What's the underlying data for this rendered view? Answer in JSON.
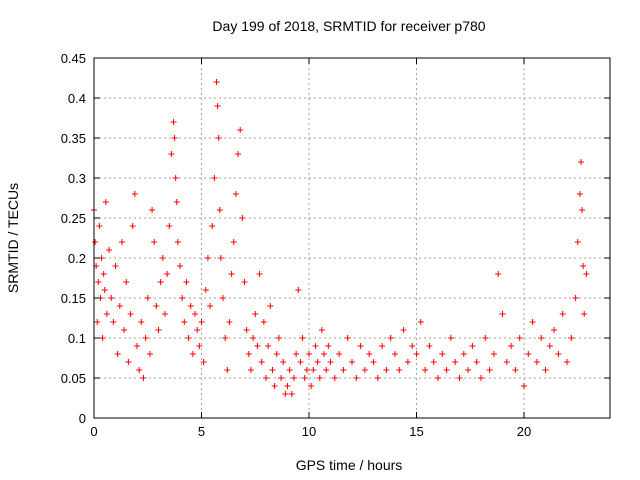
{
  "chart_data": {
    "type": "scatter",
    "title": "Day 199 of 2018, SRMTID for receiver p780",
    "xlabel": "GPS time / hours",
    "ylabel": "SRMTID / TECUs",
    "xlim": [
      0,
      24
    ],
    "ylim": [
      0,
      0.45
    ],
    "xticks": [
      0,
      5,
      10,
      15,
      20
    ],
    "xtick_labels": [
      "0",
      "5",
      "10",
      "15",
      "20"
    ],
    "yticks": [
      0,
      0.05,
      0.1,
      0.15,
      0.2,
      0.25,
      0.3,
      0.35,
      0.4,
      0.45
    ],
    "ytick_labels": [
      "0",
      "0.05",
      "0.1",
      "0.15",
      "0.2",
      "0.25",
      "0.3",
      "0.35",
      "0.4",
      "0.45"
    ],
    "grid": true,
    "marker": "+",
    "color": "#ff0000",
    "series": [
      {
        "name": "SRMTID",
        "points": [
          [
            0.0,
            0.26
          ],
          [
            0.05,
            0.22
          ],
          [
            0.1,
            0.19
          ],
          [
            0.15,
            0.12
          ],
          [
            0.2,
            0.17
          ],
          [
            0.25,
            0.24
          ],
          [
            0.3,
            0.15
          ],
          [
            0.35,
            0.2
          ],
          [
            0.4,
            0.1
          ],
          [
            0.45,
            0.18
          ],
          [
            0.5,
            0.16
          ],
          [
            0.55,
            0.27
          ],
          [
            0.6,
            0.13
          ],
          [
            0.7,
            0.21
          ],
          [
            0.8,
            0.15
          ],
          [
            0.9,
            0.12
          ],
          [
            1.0,
            0.19
          ],
          [
            1.1,
            0.08
          ],
          [
            1.2,
            0.14
          ],
          [
            1.3,
            0.22
          ],
          [
            1.4,
            0.11
          ],
          [
            1.5,
            0.17
          ],
          [
            1.6,
            0.07
          ],
          [
            1.7,
            0.13
          ],
          [
            1.8,
            0.24
          ],
          [
            1.9,
            0.28
          ],
          [
            2.0,
            0.09
          ],
          [
            2.1,
            0.06
          ],
          [
            2.2,
            0.12
          ],
          [
            2.3,
            0.05
          ],
          [
            2.4,
            0.1
          ],
          [
            2.5,
            0.15
          ],
          [
            2.6,
            0.08
          ],
          [
            2.7,
            0.26
          ],
          [
            2.8,
            0.22
          ],
          [
            2.9,
            0.14
          ],
          [
            3.0,
            0.11
          ],
          [
            3.1,
            0.17
          ],
          [
            3.2,
            0.2
          ],
          [
            3.3,
            0.13
          ],
          [
            3.4,
            0.18
          ],
          [
            3.5,
            0.24
          ],
          [
            3.6,
            0.33
          ],
          [
            3.7,
            0.37
          ],
          [
            3.75,
            0.35
          ],
          [
            3.8,
            0.3
          ],
          [
            3.85,
            0.27
          ],
          [
            3.9,
            0.22
          ],
          [
            4.0,
            0.19
          ],
          [
            4.1,
            0.15
          ],
          [
            4.2,
            0.12
          ],
          [
            4.3,
            0.17
          ],
          [
            4.4,
            0.1
          ],
          [
            4.5,
            0.14
          ],
          [
            4.6,
            0.08
          ],
          [
            4.7,
            0.13
          ],
          [
            4.8,
            0.11
          ],
          [
            4.9,
            0.09
          ],
          [
            5.0,
            0.12
          ],
          [
            5.1,
            0.07
          ],
          [
            5.2,
            0.16
          ],
          [
            5.3,
            0.2
          ],
          [
            5.4,
            0.14
          ],
          [
            5.5,
            0.24
          ],
          [
            5.6,
            0.3
          ],
          [
            5.7,
            0.42
          ],
          [
            5.75,
            0.39
          ],
          [
            5.8,
            0.35
          ],
          [
            5.85,
            0.26
          ],
          [
            5.9,
            0.2
          ],
          [
            6.0,
            0.15
          ],
          [
            6.1,
            0.1
          ],
          [
            6.2,
            0.06
          ],
          [
            6.3,
            0.12
          ],
          [
            6.4,
            0.18
          ],
          [
            6.5,
            0.22
          ],
          [
            6.6,
            0.28
          ],
          [
            6.7,
            0.33
          ],
          [
            6.8,
            0.36
          ],
          [
            6.9,
            0.25
          ],
          [
            7.0,
            0.17
          ],
          [
            7.1,
            0.11
          ],
          [
            7.2,
            0.08
          ],
          [
            7.3,
            0.06
          ],
          [
            7.4,
            0.1
          ],
          [
            7.5,
            0.13
          ],
          [
            7.6,
            0.09
          ],
          [
            7.7,
            0.18
          ],
          [
            7.8,
            0.07
          ],
          [
            7.9,
            0.12
          ],
          [
            8.0,
            0.05
          ],
          [
            8.1,
            0.09
          ],
          [
            8.2,
            0.14
          ],
          [
            8.3,
            0.06
          ],
          [
            8.4,
            0.04
          ],
          [
            8.5,
            0.08
          ],
          [
            8.6,
            0.1
          ],
          [
            8.7,
            0.05
          ],
          [
            8.8,
            0.07
          ],
          [
            8.9,
            0.03
          ],
          [
            9.0,
            0.04
          ],
          [
            9.1,
            0.06
          ],
          [
            9.2,
            0.03
          ],
          [
            9.3,
            0.05
          ],
          [
            9.4,
            0.08
          ],
          [
            9.5,
            0.16
          ],
          [
            9.6,
            0.07
          ],
          [
            9.7,
            0.1
          ],
          [
            9.8,
            0.05
          ],
          [
            9.9,
            0.06
          ],
          [
            10.0,
            0.08
          ],
          [
            10.1,
            0.04
          ],
          [
            10.2,
            0.06
          ],
          [
            10.3,
            0.09
          ],
          [
            10.4,
            0.07
          ],
          [
            10.5,
            0.05
          ],
          [
            10.6,
            0.11
          ],
          [
            10.7,
            0.08
          ],
          [
            10.8,
            0.06
          ],
          [
            10.9,
            0.09
          ],
          [
            11.0,
            0.07
          ],
          [
            11.2,
            0.05
          ],
          [
            11.4,
            0.08
          ],
          [
            11.6,
            0.06
          ],
          [
            11.8,
            0.1
          ],
          [
            12.0,
            0.07
          ],
          [
            12.2,
            0.05
          ],
          [
            12.4,
            0.09
          ],
          [
            12.6,
            0.06
          ],
          [
            12.8,
            0.08
          ],
          [
            13.0,
            0.07
          ],
          [
            13.2,
            0.05
          ],
          [
            13.4,
            0.09
          ],
          [
            13.6,
            0.06
          ],
          [
            13.8,
            0.1
          ],
          [
            14.0,
            0.08
          ],
          [
            14.2,
            0.06
          ],
          [
            14.4,
            0.11
          ],
          [
            14.6,
            0.07
          ],
          [
            14.8,
            0.09
          ],
          [
            15.0,
            0.08
          ],
          [
            15.2,
            0.12
          ],
          [
            15.4,
            0.06
          ],
          [
            15.6,
            0.09
          ],
          [
            15.8,
            0.07
          ],
          [
            16.0,
            0.05
          ],
          [
            16.2,
            0.08
          ],
          [
            16.4,
            0.06
          ],
          [
            16.6,
            0.1
          ],
          [
            16.8,
            0.07
          ],
          [
            17.0,
            0.05
          ],
          [
            17.2,
            0.08
          ],
          [
            17.4,
            0.06
          ],
          [
            17.6,
            0.09
          ],
          [
            17.8,
            0.07
          ],
          [
            18.0,
            0.05
          ],
          [
            18.2,
            0.1
          ],
          [
            18.4,
            0.06
          ],
          [
            18.6,
            0.08
          ],
          [
            18.8,
            0.18
          ],
          [
            19.0,
            0.13
          ],
          [
            19.2,
            0.07
          ],
          [
            19.4,
            0.09
          ],
          [
            19.6,
            0.06
          ],
          [
            19.8,
            0.1
          ],
          [
            20.0,
            0.04
          ],
          [
            20.2,
            0.08
          ],
          [
            20.4,
            0.12
          ],
          [
            20.6,
            0.07
          ],
          [
            20.8,
            0.1
          ],
          [
            21.0,
            0.06
          ],
          [
            21.2,
            0.09
          ],
          [
            21.4,
            0.11
          ],
          [
            21.6,
            0.08
          ],
          [
            21.8,
            0.13
          ],
          [
            22.0,
            0.07
          ],
          [
            22.2,
            0.1
          ],
          [
            22.4,
            0.15
          ],
          [
            22.5,
            0.22
          ],
          [
            22.6,
            0.28
          ],
          [
            22.65,
            0.32
          ],
          [
            22.7,
            0.26
          ],
          [
            22.75,
            0.19
          ],
          [
            22.8,
            0.13
          ],
          [
            22.9,
            0.18
          ]
        ]
      }
    ]
  }
}
